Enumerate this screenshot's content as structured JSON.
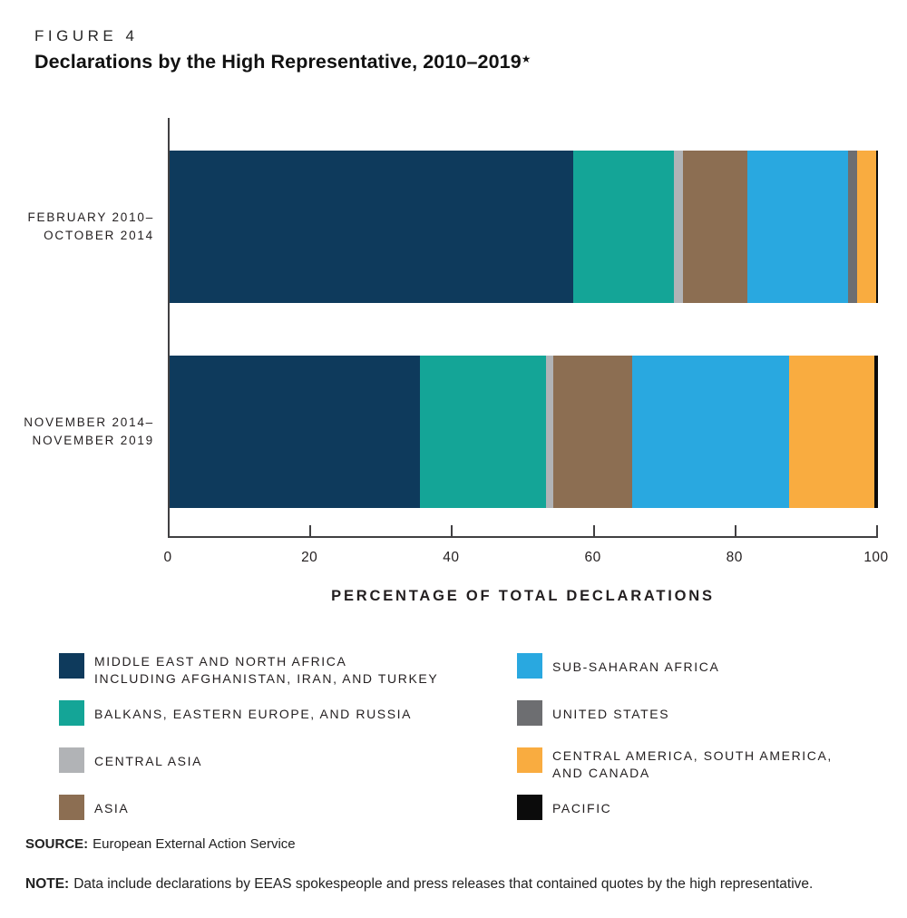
{
  "figure": {
    "label": "FIGURE 4",
    "title": "Declarations by the High Representative, 2010–2019",
    "title_star": "★"
  },
  "chart_data": {
    "type": "bar",
    "stacked": true,
    "orientation": "horizontal",
    "categories": [
      [
        "FEBRUARY 2010–",
        "OCTOBER 2014"
      ],
      [
        "NOVEMBER 2014–",
        "NOVEMBER 2019"
      ]
    ],
    "series": [
      {
        "name": "MIDDLE EAST AND NORTH AFRICA INCLUDING AFGHANISTAN, IRAN, AND TURKEY",
        "color": "#0e3a5c",
        "values": [
          57.0,
          35.4
        ]
      },
      {
        "name": "BALKANS, EASTERN EUROPE, AND RUSSIA",
        "color": "#14a597",
        "values": [
          14.2,
          17.8
        ]
      },
      {
        "name": "CENTRAL ASIA",
        "color": "#b1b3b6",
        "values": [
          1.3,
          1.0
        ]
      },
      {
        "name": "ASIA",
        "color": "#8c6e52",
        "values": [
          9.1,
          11.1
        ]
      },
      {
        "name": "SUB-SAHARAN AFRICA",
        "color": "#29a8e0",
        "values": [
          14.2,
          22.2
        ]
      },
      {
        "name": "UNITED STATES",
        "color": "#6d6e71",
        "values": [
          1.3,
          0
        ]
      },
      {
        "name": "CENTRAL AMERICA, SOUTH AMERICA, AND CANADA",
        "color": "#f9ac40",
        "values": [
          2.6,
          12.0
        ]
      },
      {
        "name": "PACIFIC",
        "color": "#0b0b0b",
        "values": [
          0.3,
          0.5
        ]
      }
    ],
    "xlabel": "PERCENTAGE OF TOTAL DECLARATIONS",
    "xlim": [
      0,
      100
    ],
    "xticks": [
      0,
      20,
      40,
      60,
      80,
      100
    ],
    "grid": false,
    "legend_position": "bottom"
  },
  "legend": {
    "columns": [
      [
        {
          "swatch": "#0e3a5c",
          "lines": [
            "MIDDLE EAST AND NORTH AFRICA",
            "INCLUDING AFGHANISTAN, IRAN, AND TURKEY"
          ]
        },
        {
          "swatch": "#14a597",
          "lines": [
            "BALKANS, EASTERN EUROPE, AND RUSSIA"
          ]
        },
        {
          "swatch": "#b1b3b6",
          "lines": [
            "CENTRAL ASIA"
          ]
        },
        {
          "swatch": "#8c6e52",
          "lines": [
            "ASIA"
          ]
        }
      ],
      [
        {
          "swatch": "#29a8e0",
          "lines": [
            "SUB-SAHARAN AFRICA"
          ]
        },
        {
          "swatch": "#6d6e71",
          "lines": [
            "UNITED STATES"
          ]
        },
        {
          "swatch": "#f9ac40",
          "lines": [
            "CENTRAL AMERICA, SOUTH AMERICA,",
            "AND CANADA"
          ]
        },
        {
          "swatch": "#0b0b0b",
          "lines": [
            "PACIFIC"
          ]
        }
      ]
    ]
  },
  "footer": {
    "source_label": "SOURCE:",
    "source_text": "European External Action Service",
    "note_label": "NOTE:",
    "note_text": "Data include declarations by EEAS spokespeople and press releases that contained quotes by the high representative."
  }
}
